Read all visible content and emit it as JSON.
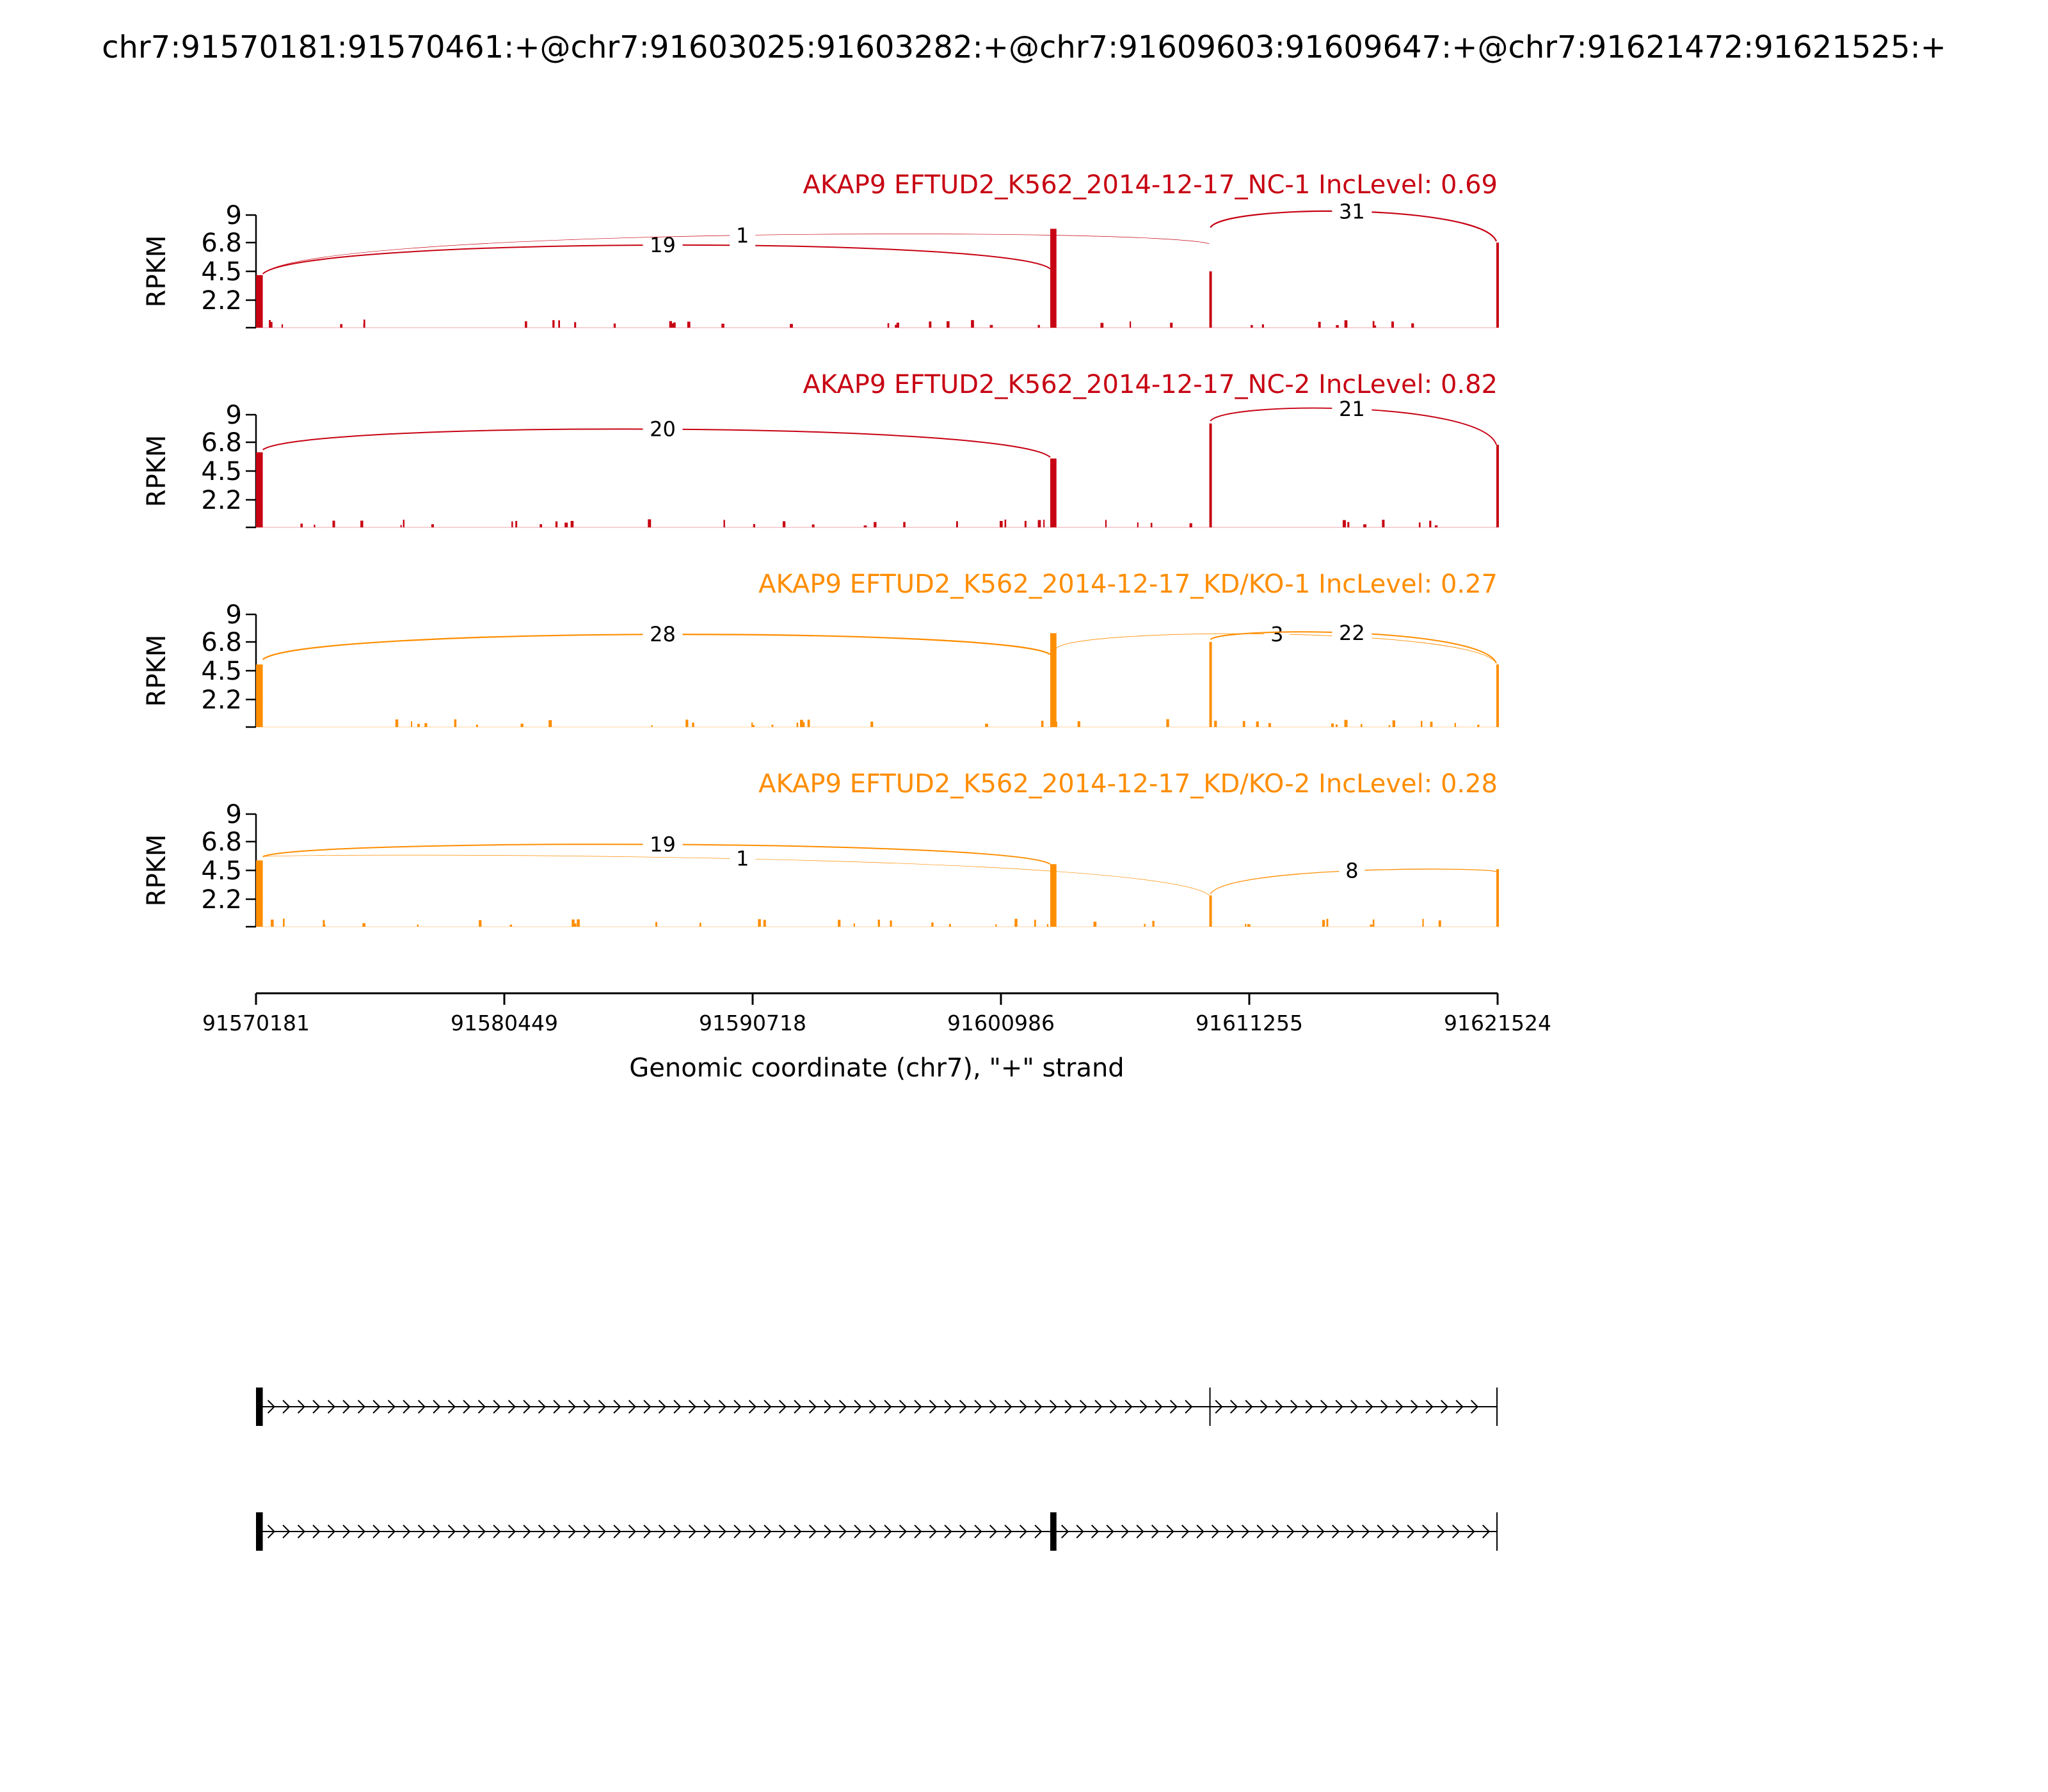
{
  "title": "chr7:91570181:91570461:+@chr7:91603025:91603282:+@chr7:91609603:91609647:+@chr7:91621472:91621525:+",
  "colors": {
    "nc": "#c70213",
    "kd": "#ff8d00",
    "axis": "#000000",
    "model": "#000000"
  },
  "chart_data": {
    "type": "area",
    "xlabel": "Genomic coordinate (chr7), \"+\" strand",
    "xlim": [
      91570181,
      91621524
    ],
    "xticks": [
      "91570181",
      "91580449",
      "91590718",
      "91600986",
      "91611255",
      "91621524"
    ],
    "ylabel": "RPKM",
    "ylim": [
      0,
      9
    ],
    "yticks": [
      "2.2",
      "4.5",
      "6.8",
      "9"
    ],
    "exons": [
      {
        "start": 91570181,
        "end": 91570461
      },
      {
        "start": 91603025,
        "end": 91603282
      },
      {
        "start": 91609603,
        "end": 91609647
      },
      {
        "start": 91621472,
        "end": 91621525
      }
    ],
    "tracks": [
      {
        "label": "AKAP9 EFTUD2_K562_2014-12-17_NC-1 IncLevel: 0.69",
        "color_key": "nc",
        "exon_peaks": [
          4.2,
          7.9,
          4.5,
          6.8
        ],
        "junctions": [
          {
            "from": 91570461,
            "to": 91603025,
            "count": "19",
            "weight": 2.0,
            "y_start": 4.3,
            "y_end": 4.7,
            "apex": 7.3,
            "label_x": 91587000
          },
          {
            "from": 91570461,
            "to": 91609603,
            "count": "1",
            "weight": 0.7,
            "y_start": 4.3,
            "y_end": 6.7,
            "apex": 8.0,
            "label_x": 91590300
          },
          {
            "from": 91609647,
            "to": 91621472,
            "count": "31",
            "weight": 2.2,
            "y_start": 8.0,
            "y_end": 6.9,
            "apex": 9.9,
            "label_x": 91615500
          }
        ]
      },
      {
        "label": "AKAP9 EFTUD2_K562_2014-12-17_NC-2 IncLevel: 0.82",
        "color_key": "nc",
        "exon_peaks": [
          6.0,
          5.5,
          8.3,
          6.6
        ],
        "junctions": [
          {
            "from": 91570461,
            "to": 91603025,
            "count": "20",
            "weight": 2.0,
            "y_start": 6.2,
            "y_end": 5.6,
            "apex": 8.5,
            "label_x": 91587000
          },
          {
            "from": 91609647,
            "to": 91621472,
            "count": "21",
            "weight": 1.9,
            "y_start": 8.5,
            "y_end": 6.6,
            "apex": 10.1,
            "label_x": 91615500
          }
        ]
      },
      {
        "label": "AKAP9 EFTUD2_K562_2014-12-17_KD/KO-1 IncLevel: 0.27",
        "color_key": "kd",
        "exon_peaks": [
          5.0,
          7.5,
          6.8,
          5.0
        ],
        "junctions": [
          {
            "from": 91570461,
            "to": 91603025,
            "count": "28",
            "weight": 2.2,
            "y_start": 5.4,
            "y_end": 5.8,
            "apex": 8.0,
            "label_x": 91587000
          },
          {
            "from": 91603282,
            "to": 91621472,
            "count": "3",
            "weight": 0.9,
            "y_start": 6.3,
            "y_end": 5.1,
            "apex": 8.0,
            "label_x": 91612400
          },
          {
            "from": 91609647,
            "to": 91621472,
            "count": "22",
            "weight": 2.0,
            "y_start": 7.0,
            "y_end": 5.1,
            "apex": 8.0,
            "label_x": 91615500
          }
        ]
      },
      {
        "label": "AKAP9 EFTUD2_K562_2014-12-17_KD/KO-2 IncLevel: 0.28",
        "color_key": "kd",
        "exon_peaks": [
          5.3,
          5.0,
          2.5,
          4.6
        ],
        "junctions": [
          {
            "from": 91570461,
            "to": 91603025,
            "count": "19",
            "weight": 2.0,
            "y_start": 5.6,
            "y_end": 5.0,
            "apex": 7.0,
            "label_x": 91587000
          },
          {
            "from": 91570461,
            "to": 91609603,
            "count": "1",
            "weight": 0.7,
            "y_start": 5.6,
            "y_end": 2.5,
            "apex": 5.9,
            "label_x": 91590300
          },
          {
            "from": 91609647,
            "to": 91621472,
            "count": "8",
            "weight": 1.3,
            "y_start": 2.6,
            "y_end": 4.4,
            "apex": 4.8,
            "label_x": 91615500
          }
        ]
      }
    ],
    "isoforms": [
      {
        "exons": [
          [
            91570181,
            91570461
          ],
          [
            91609603,
            91609647
          ],
          [
            91621472,
            91621525
          ]
        ]
      },
      {
        "exons": [
          [
            91570181,
            91570461
          ],
          [
            91603025,
            91603282
          ],
          [
            91621472,
            91621525
          ]
        ]
      }
    ]
  }
}
